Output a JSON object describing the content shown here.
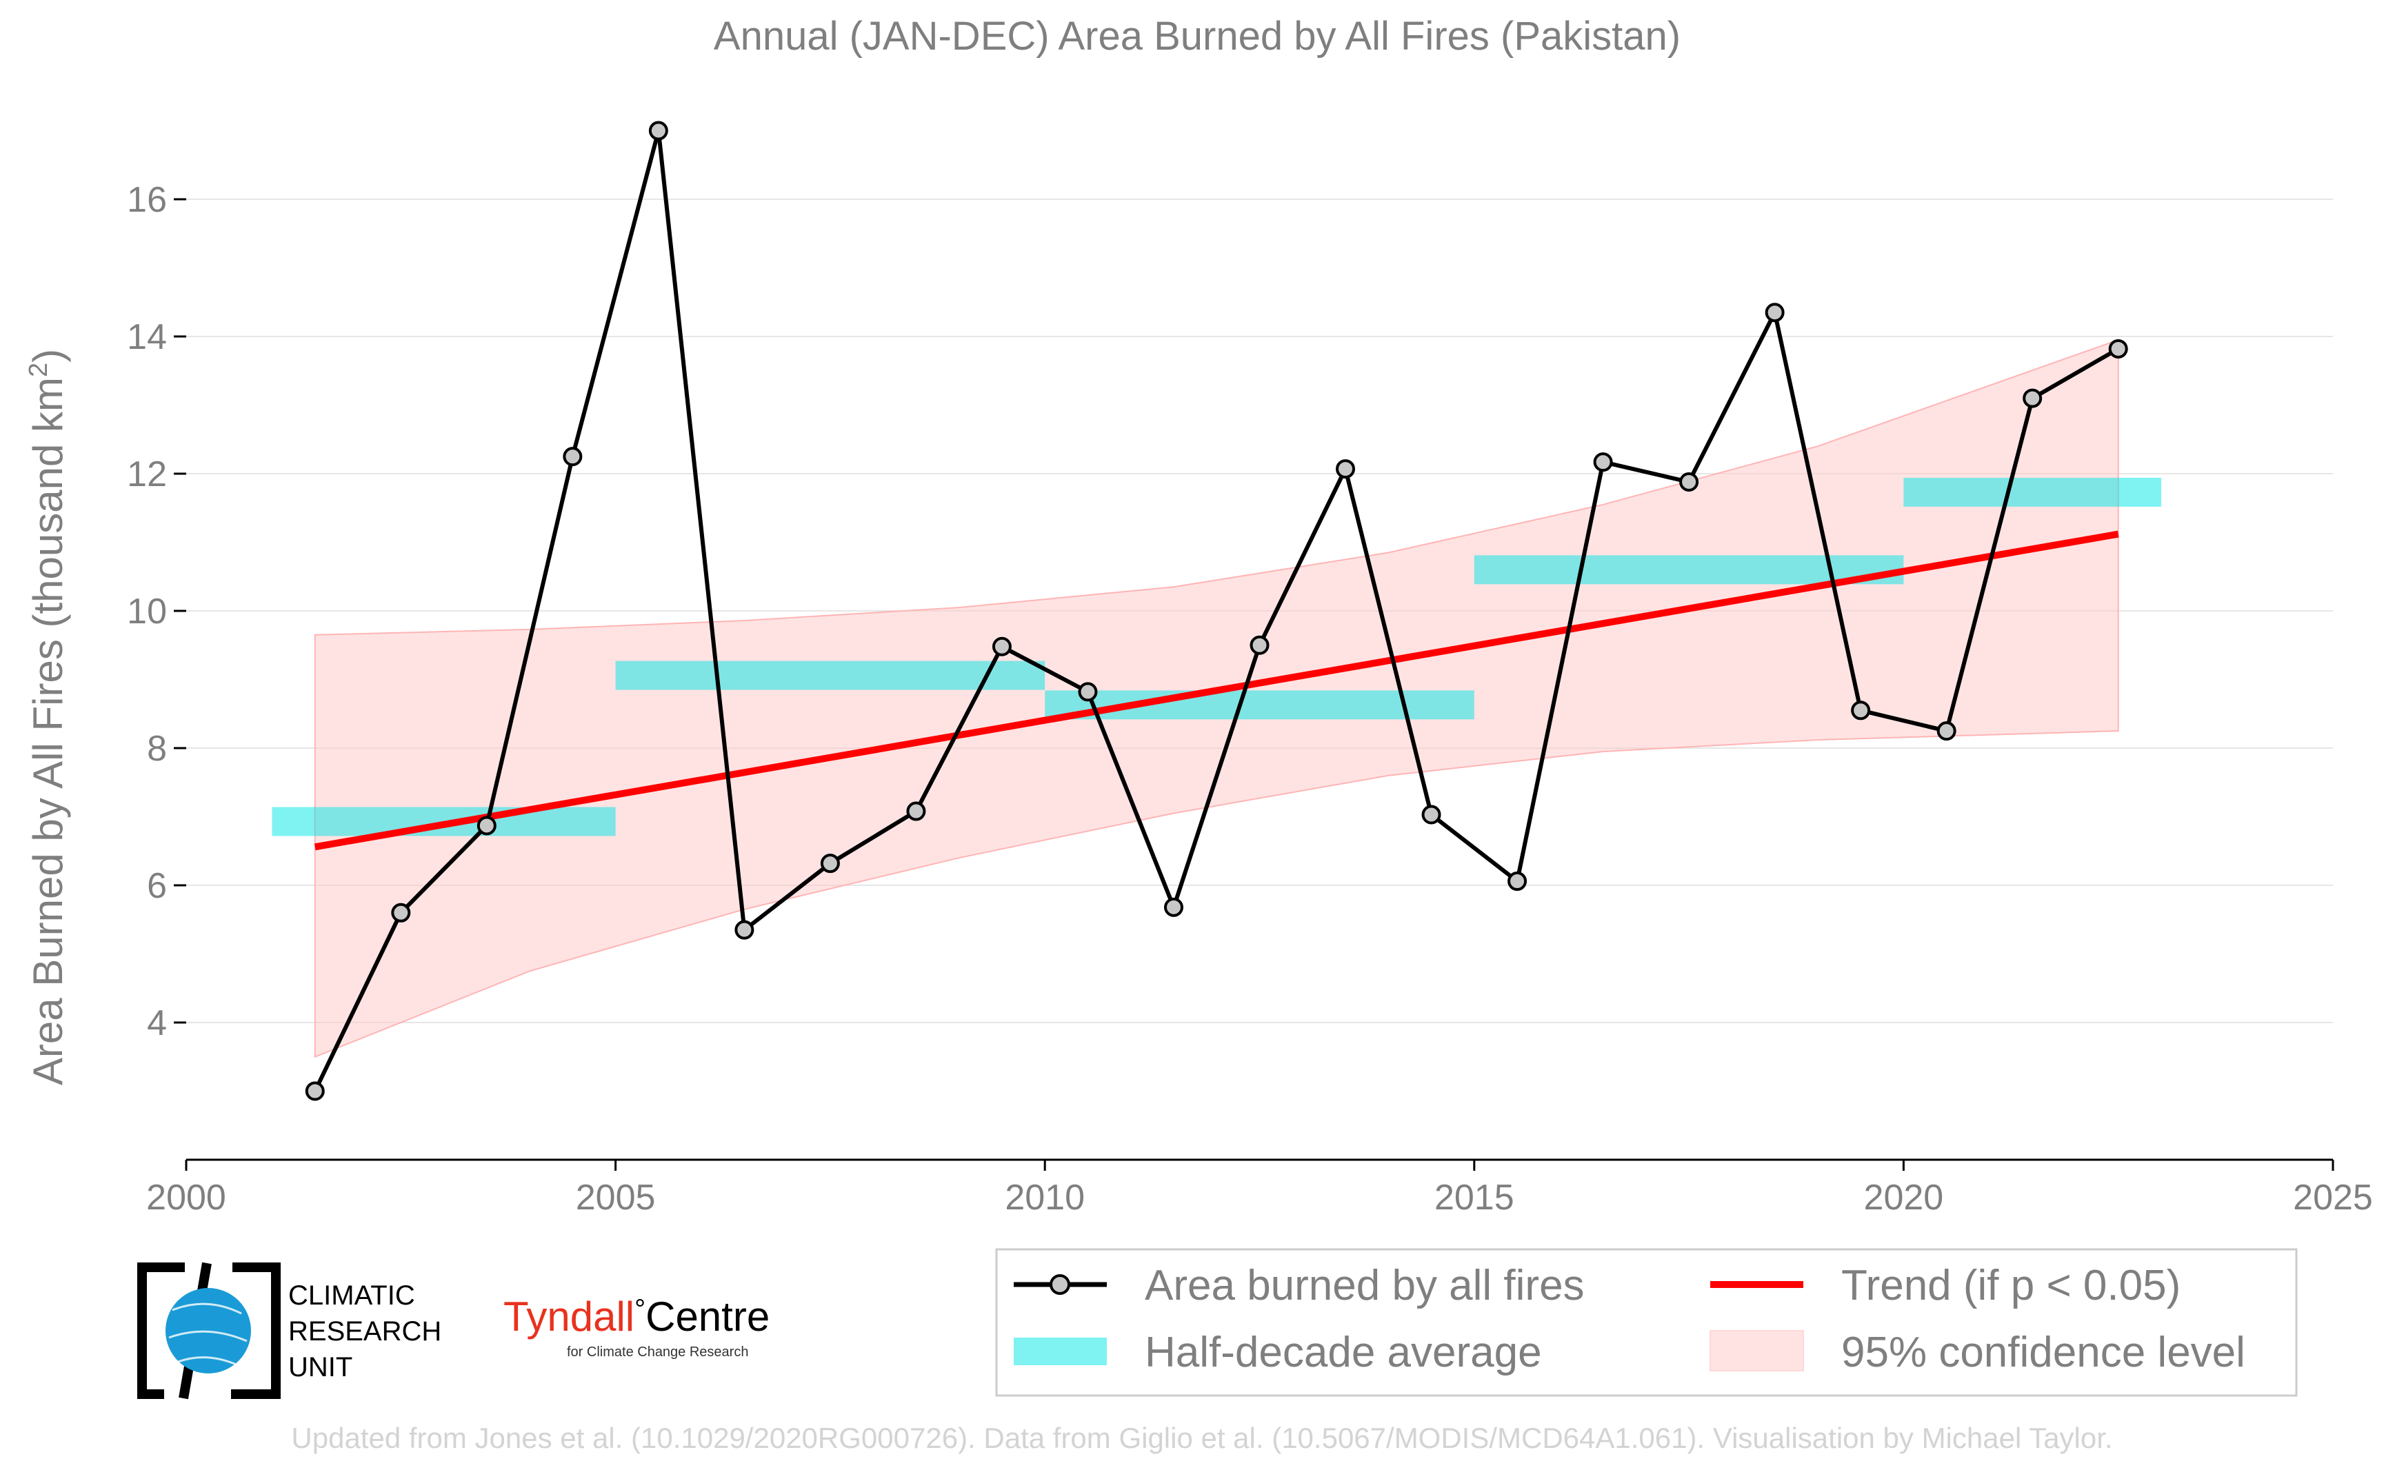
{
  "chart_data": {
    "type": "line",
    "title": "Annual (JAN-DEC) Area Burned by All Fires (Pakistan)",
    "ylabel": "Area Burned by All Fires (thousand km",
    "ylabel_sup": "2",
    "ylabel_close": ")",
    "xlim": [
      2000,
      2025
    ],
    "ylim": [
      2.0,
      17.9
    ],
    "x_ticks": [
      2000,
      2005,
      2010,
      2015,
      2020,
      2025
    ],
    "y_ticks": [
      4,
      6,
      8,
      10,
      12,
      14,
      16
    ],
    "grid": "horizontal",
    "legend_position": "bottom-right",
    "series": [
      {
        "name": "Area burned by all fires",
        "color": "#000000",
        "marker_fill": "#c8c8c8",
        "x": [
          2001.5,
          2002.5,
          2003.5,
          2004.5,
          2005.5,
          2006.5,
          2007.5,
          2008.5,
          2009.5,
          2010.5,
          2011.5,
          2012.5,
          2013.5,
          2014.5,
          2015.5,
          2016.5,
          2017.5,
          2018.5,
          2019.5,
          2020.5,
          2021.5,
          2022.5
        ],
        "y": [
          3.0,
          5.6,
          6.87,
          12.25,
          17.0,
          5.35,
          6.32,
          7.08,
          9.48,
          8.82,
          5.68,
          9.5,
          12.07,
          7.03,
          6.06,
          12.17,
          11.88,
          14.35,
          8.55,
          8.25,
          13.1,
          13.82
        ]
      }
    ],
    "half_decade_average": {
      "name": "Half-decade average",
      "color": "#00e5e5",
      "segments": [
        {
          "x0": 2001.0,
          "x1": 2005.0,
          "y": 6.93
        },
        {
          "x0": 2005.0,
          "x1": 2010.0,
          "y": 9.06
        },
        {
          "x0": 2010.0,
          "x1": 2015.0,
          "y": 8.63
        },
        {
          "x0": 2015.0,
          "x1": 2020.0,
          "y": 10.6
        },
        {
          "x0": 2020.0,
          "x1": 2023.0,
          "y": 11.73
        }
      ]
    },
    "trend": {
      "name": "Trend (if p < 0.05)",
      "color": "#ff0000",
      "x": [
        2001.5,
        2022.5
      ],
      "y": [
        6.56,
        11.12
      ]
    },
    "confidence": {
      "name": "95% confidence level",
      "color": "#ffc8c8",
      "x": [
        2001.5,
        2004.0,
        2006.5,
        2009.0,
        2011.5,
        2014.0,
        2016.5,
        2019.0,
        2022.5
      ],
      "upper": [
        9.65,
        9.73,
        9.86,
        10.05,
        10.35,
        10.85,
        11.55,
        12.4,
        13.95
      ],
      "lower": [
        3.5,
        4.75,
        5.65,
        6.4,
        7.05,
        7.6,
        7.95,
        8.12,
        8.25
      ]
    }
  },
  "legend": {
    "items": [
      {
        "label": "Area burned by all fires"
      },
      {
        "label": "Half-decade average"
      },
      {
        "label": "Trend (if p < 0.05)"
      },
      {
        "label": "95% confidence level"
      }
    ]
  },
  "logos": {
    "cru_line1": "CLIMATIC",
    "cru_line2": "RESEARCH",
    "cru_line3": "UNIT",
    "tyndall_main": "Tyndall",
    "tyndall_degree": "°",
    "tyndall_centre": "Centre",
    "tyndall_sub": "for Climate Change Research"
  },
  "footer": "Updated from Jones et al. (10.1029/2020RG000726). Data from Giglio et al. (10.5067/MODIS/MCD64A1.061). Visualisation by Michael Taylor."
}
